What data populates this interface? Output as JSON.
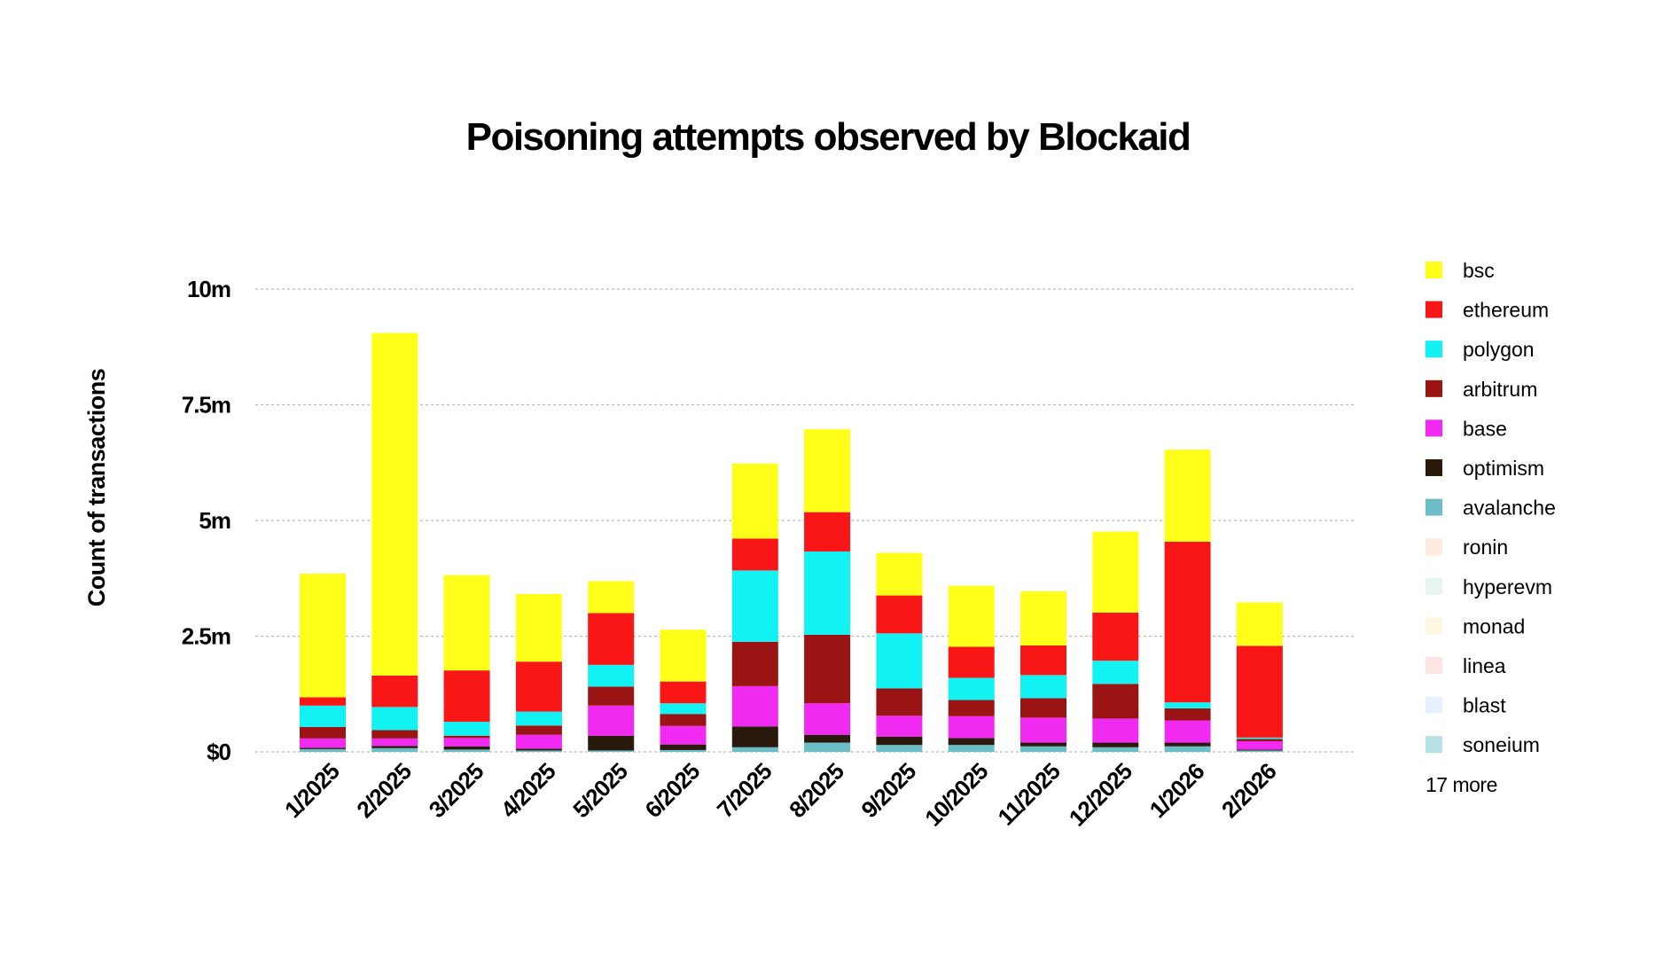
{
  "chart_data": {
    "type": "bar",
    "stacked": true,
    "title": "Poisoning attempts observed by Blockaid",
    "xlabel": "",
    "ylabel": "Count of transactions",
    "ylim": [
      0,
      10000000
    ],
    "yticks": [
      0,
      2500000,
      5000000,
      7500000,
      10000000
    ],
    "ytick_labels": [
      "$0",
      "2.5m",
      "5m",
      "7.5m",
      "10m"
    ],
    "grid": true,
    "legend_position": "right",
    "categories": [
      "1/2025",
      "2/2025",
      "3/2025",
      "4/2025",
      "5/2025",
      "6/2025",
      "7/2025",
      "8/2025",
      "9/2025",
      "10/2025",
      "11/2025",
      "12/2025",
      "1/2026",
      "2/2026"
    ],
    "series": [
      {
        "name": "soneium",
        "color": "#b7e3e6",
        "values": [
          0,
          0,
          0,
          0,
          0,
          0,
          0,
          0,
          0,
          0,
          0,
          0,
          0,
          0
        ]
      },
      {
        "name": "blast",
        "color": "#e8f0ff",
        "values": [
          0,
          0,
          0,
          0,
          0,
          0,
          0,
          0,
          0,
          0,
          0,
          0,
          0,
          0
        ]
      },
      {
        "name": "linea",
        "color": "#fbe5e5",
        "values": [
          0,
          0,
          0,
          0,
          0,
          0,
          0,
          0,
          0,
          0,
          0,
          0,
          0,
          0
        ]
      },
      {
        "name": "monad",
        "color": "#fdf6e3",
        "values": [
          0,
          0,
          0,
          0,
          0,
          0,
          0,
          0,
          0,
          0,
          0,
          0,
          0,
          0
        ]
      },
      {
        "name": "hyperevm",
        "color": "#e6f5ee",
        "values": [
          0,
          0,
          0,
          0,
          0,
          0,
          0,
          0,
          0,
          0,
          0,
          0,
          0,
          0
        ]
      },
      {
        "name": "ronin",
        "color": "#fdebe0",
        "values": [
          0,
          0,
          0,
          0,
          0,
          0,
          0,
          0,
          0,
          0,
          0,
          0,
          0,
          0
        ]
      },
      {
        "name": "avalanche",
        "color": "#6bbdc6",
        "values": [
          60000,
          80000,
          50000,
          30000,
          30000,
          40000,
          100000,
          200000,
          150000,
          150000,
          120000,
          100000,
          120000,
          30000
        ]
      },
      {
        "name": "optimism",
        "color": "#2a1a0e",
        "values": [
          30000,
          50000,
          70000,
          40000,
          320000,
          120000,
          450000,
          170000,
          180000,
          150000,
          80000,
          100000,
          80000,
          20000
        ]
      },
      {
        "name": "base",
        "color": "#f02af0",
        "values": [
          200000,
          160000,
          180000,
          300000,
          650000,
          400000,
          870000,
          680000,
          450000,
          470000,
          540000,
          520000,
          480000,
          180000
        ]
      },
      {
        "name": "arbitrum",
        "color": "#9b1414",
        "values": [
          250000,
          180000,
          50000,
          200000,
          410000,
          260000,
          960000,
          1480000,
          590000,
          350000,
          420000,
          750000,
          260000,
          50000
        ]
      },
      {
        "name": "polygon",
        "color": "#13f2f2",
        "values": [
          460000,
          500000,
          300000,
          300000,
          470000,
          230000,
          1540000,
          1800000,
          1190000,
          480000,
          500000,
          500000,
          130000,
          30000
        ]
      },
      {
        "name": "ethereum",
        "color": "#f81616",
        "values": [
          180000,
          680000,
          1110000,
          1080000,
          1120000,
          470000,
          690000,
          850000,
          820000,
          670000,
          640000,
          1040000,
          3470000,
          1980000
        ]
      },
      {
        "name": "bsc",
        "color": "#ffff19",
        "values": [
          2670000,
          7400000,
          2060000,
          1460000,
          690000,
          1120000,
          1620000,
          1790000,
          920000,
          1320000,
          1170000,
          1750000,
          1990000,
          940000
        ]
      }
    ]
  },
  "legend": {
    "items": [
      {
        "name": "bsc",
        "color": "#ffff19"
      },
      {
        "name": "ethereum",
        "color": "#f81616"
      },
      {
        "name": "polygon",
        "color": "#13f2f2"
      },
      {
        "name": "arbitrum",
        "color": "#9b1414"
      },
      {
        "name": "base",
        "color": "#f02af0"
      },
      {
        "name": "optimism",
        "color": "#2a1a0e"
      },
      {
        "name": "avalanche",
        "color": "#6bbdc6"
      },
      {
        "name": "ronin",
        "color": "#fdebe0"
      },
      {
        "name": "hyperevm",
        "color": "#e6f5ee"
      },
      {
        "name": "monad",
        "color": "#fdf6e3"
      },
      {
        "name": "linea",
        "color": "#fbe5e5"
      },
      {
        "name": "blast",
        "color": "#e8f0ff"
      },
      {
        "name": "soneium",
        "color": "#b7e3e6"
      }
    ],
    "more_label": "17 more"
  }
}
